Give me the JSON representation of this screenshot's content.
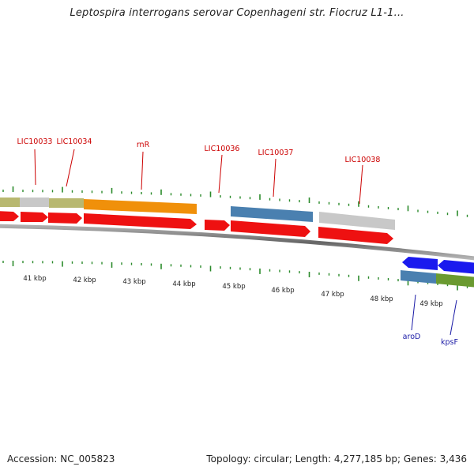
{
  "title": "Leptospira interrogans serovar Copenhageni str. Fiocruz L1-1...",
  "footer": {
    "accession": "Accession: NC_005823",
    "summary": "Topology: circular; Length: 4,277,185 bp; Genes: 3,436"
  },
  "colors": {
    "cds_red": "#ee1111",
    "blue": "#1a1aee",
    "steel_blue": "#4a80b0",
    "orange": "#f0900a",
    "gray": "#c8c8c8",
    "olive": "#b8b870",
    "green": "#6a9a30",
    "tick_green": "#2a8a2a",
    "backbone": "#7a7a7a"
  },
  "scale_labels": [
    "41 kbp",
    "42 kbp",
    "43 kbp",
    "44 kbp",
    "45 kbp",
    "46 kbp",
    "47 kbp",
    "48 kbp",
    "49 kbp"
  ],
  "gene_labels_top": [
    "LIC10033",
    "LIC10034",
    "rnR",
    "LIC10036",
    "LIC10037",
    "LIC10038"
  ],
  "gene_labels_bottom": [
    "aroD",
    "kpsF"
  ]
}
